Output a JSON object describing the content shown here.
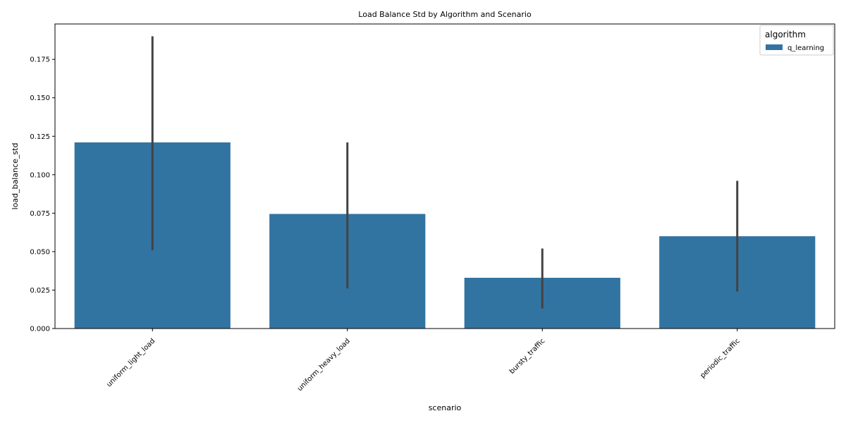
{
  "chart_data": {
    "type": "bar",
    "title": "Load Balance Std by Algorithm and Scenario",
    "xlabel": "scenario",
    "ylabel": "load_balance_std",
    "categories": [
      "uniform_light_load",
      "uniform_heavy_load",
      "bursty_traffic",
      "periodic_traffic"
    ],
    "series": [
      {
        "name": "q_learning",
        "color": "#3274a1",
        "values": [
          0.121,
          0.0745,
          0.033,
          0.06
        ],
        "error_low": [
          0.051,
          0.026,
          0.013,
          0.024
        ],
        "error_high": [
          0.19,
          0.121,
          0.052,
          0.096
        ]
      }
    ],
    "ylim": [
      0,
      0.198
    ],
    "yticks": [
      0.0,
      0.025,
      0.05,
      0.075,
      0.1,
      0.125,
      0.15,
      0.175
    ],
    "ytick_labels": [
      "0.000",
      "0.025",
      "0.050",
      "0.075",
      "0.100",
      "0.125",
      "0.150",
      "0.175"
    ],
    "grid": false,
    "legend": {
      "title": "algorithm",
      "placement": "top-right"
    }
  }
}
